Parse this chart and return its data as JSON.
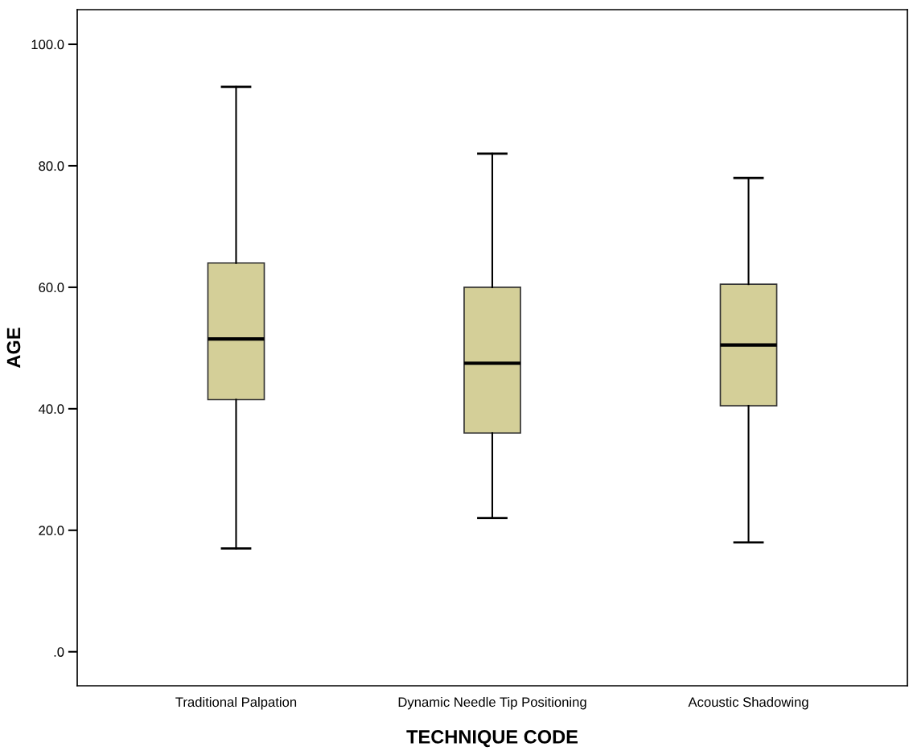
{
  "chart_data": {
    "type": "box",
    "xlabel": "TECHNIQUE CODE",
    "ylabel": "AGE",
    "categories": [
      "Traditional Palpation",
      "Dynamic Needle Tip Positioning",
      "Acoustic Shadowing"
    ],
    "boxes": [
      {
        "low": 17,
        "q1": 41.5,
        "median": 51.5,
        "q3": 64,
        "high": 93
      },
      {
        "low": 22,
        "q1": 36,
        "median": 47.5,
        "q3": 60,
        "high": 82
      },
      {
        "low": 18,
        "q1": 40.5,
        "median": 50.5,
        "q3": 60.5,
        "high": 78
      }
    ],
    "color": "#d4cf98",
    "ylim": [
      -5.6,
      105.7
    ],
    "yticks": [
      {
        "value": 0,
        "label": ".0"
      },
      {
        "value": 20,
        "label": "20.0"
      },
      {
        "value": 40,
        "label": "40.0"
      },
      {
        "value": 60,
        "label": "60.0"
      },
      {
        "value": 80,
        "label": "80.0"
      },
      {
        "value": 100,
        "label": "100.0"
      }
    ],
    "grid": false
  }
}
